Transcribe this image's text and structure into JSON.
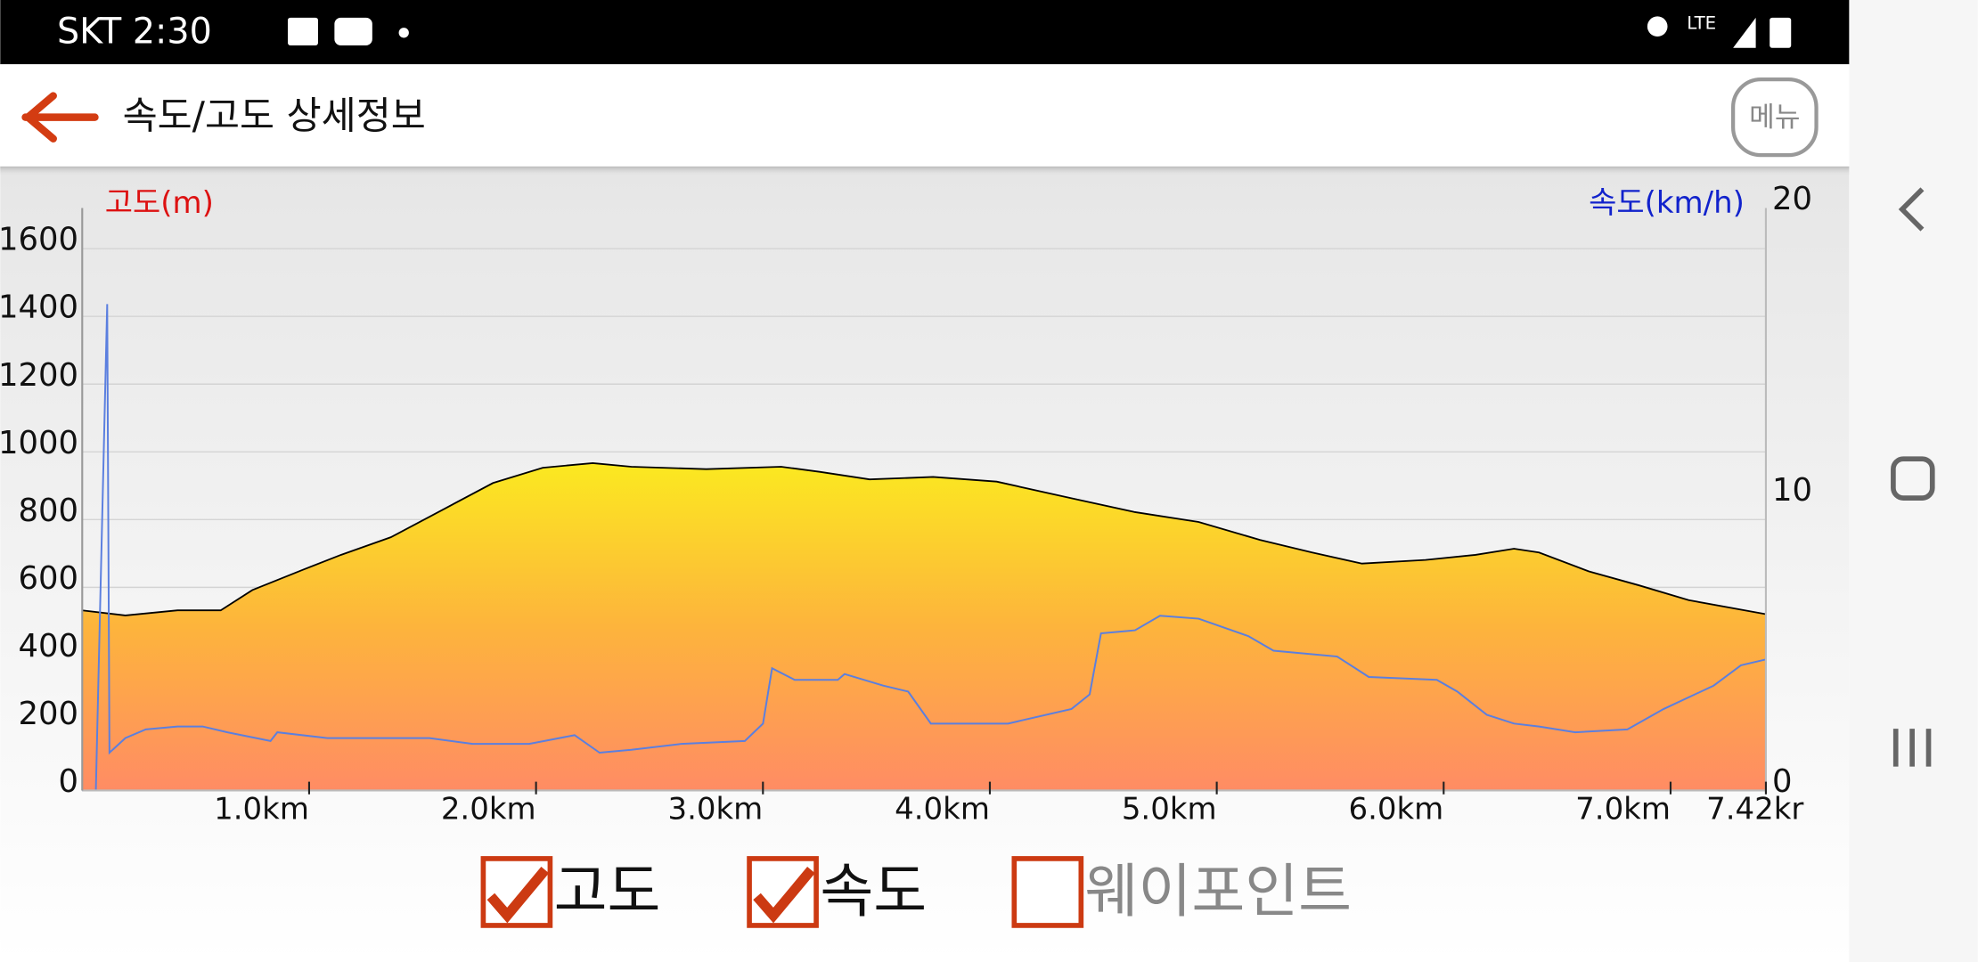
{
  "status": {
    "carrier_time": "SKT 2:30",
    "network": "LTE"
  },
  "header": {
    "title": "속도/고도 상세정보",
    "menu": "메뉴"
  },
  "chart_data": {
    "type": "area-line",
    "y_label": "고도(m)",
    "y2_label": "속도(km/h)",
    "xlim": [
      0,
      7.42
    ],
    "xticks": [
      {
        "value": 1,
        "label": "1.0km"
      },
      {
        "value": 2,
        "label": "2.0km"
      },
      {
        "value": 3,
        "label": "3.0km"
      },
      {
        "value": 4,
        "label": "4.0km"
      },
      {
        "value": 5,
        "label": "5.0km"
      },
      {
        "value": 6,
        "label": "6.0km"
      },
      {
        "value": 7,
        "label": "7.0km"
      },
      {
        "value": 7.42,
        "label": "7.42kr"
      }
    ],
    "ylim": [
      0,
      1720
    ],
    "yticks": [
      0,
      200,
      400,
      600,
      800,
      1000,
      1200,
      1400,
      1600
    ],
    "y2lim": [
      0,
      20
    ],
    "y2ticks": [
      0,
      10,
      20
    ],
    "grid": true,
    "series": [
      {
        "name": "고도",
        "type": "area",
        "color": "#000000",
        "x": [
          0,
          0.19,
          0.42,
          0.61,
          0.75,
          0.97,
          1.14,
          1.36,
          1.58,
          1.81,
          2.03,
          2.25,
          2.42,
          2.75,
          3.08,
          3.25,
          3.47,
          3.75,
          4.03,
          4.36,
          4.64,
          4.92,
          5.19,
          5.42,
          5.64,
          5.92,
          6.14,
          6.31,
          6.42,
          6.64,
          6.86,
          7.08,
          7.42
        ],
        "values": [
          532,
          517,
          532,
          532,
          592,
          651,
          696,
          748,
          826,
          908,
          953,
          967,
          956,
          949,
          956,
          941,
          919,
          926,
          912,
          863,
          822,
          793,
          740,
          703,
          670,
          681,
          696,
          714,
          703,
          647,
          606,
          562,
          521
        ]
      },
      {
        "name": "속도",
        "type": "line",
        "axis": "y2",
        "color": "#5b7fdf",
        "x": [
          0,
          0.06,
          0.11,
          0.12,
          0.19,
          0.28,
          0.42,
          0.53,
          0.64,
          0.83,
          0.86,
          1.08,
          1.31,
          1.53,
          1.72,
          1.97,
          2.17,
          2.28,
          2.42,
          2.64,
          2.92,
          3.0,
          3.04,
          3.14,
          3.33,
          3.36,
          3.53,
          3.64,
          3.74,
          3.86,
          4.08,
          4.36,
          4.44,
          4.49,
          4.64,
          4.75,
          4.92,
          5.14,
          5.25,
          5.53,
          5.67,
          5.97,
          6.06,
          6.19,
          6.31,
          6.42,
          6.58,
          6.81,
          6.97,
          7.19,
          7.31,
          7.42
        ],
        "values": [
          0,
          0,
          16.7,
          1.3,
          1.8,
          2.1,
          2.2,
          2.2,
          2.0,
          1.7,
          2.0,
          1.8,
          1.8,
          1.8,
          1.6,
          1.6,
          1.9,
          1.3,
          1.4,
          1.6,
          1.7,
          2.3,
          4.2,
          3.8,
          3.8,
          4.0,
          3.6,
          3.4,
          2.3,
          2.3,
          2.3,
          2.8,
          3.3,
          5.4,
          5.5,
          6.0,
          5.9,
          5.3,
          4.8,
          4.6,
          3.9,
          3.8,
          3.4,
          2.6,
          2.3,
          2.2,
          2.0,
          2.1,
          2.8,
          3.6,
          4.3,
          4.5
        ]
      }
    ]
  },
  "checkboxes": [
    {
      "label": "고도",
      "checked": true
    },
    {
      "label": "속도",
      "checked": true
    },
    {
      "label": "웨이포인트",
      "checked": false
    }
  ]
}
